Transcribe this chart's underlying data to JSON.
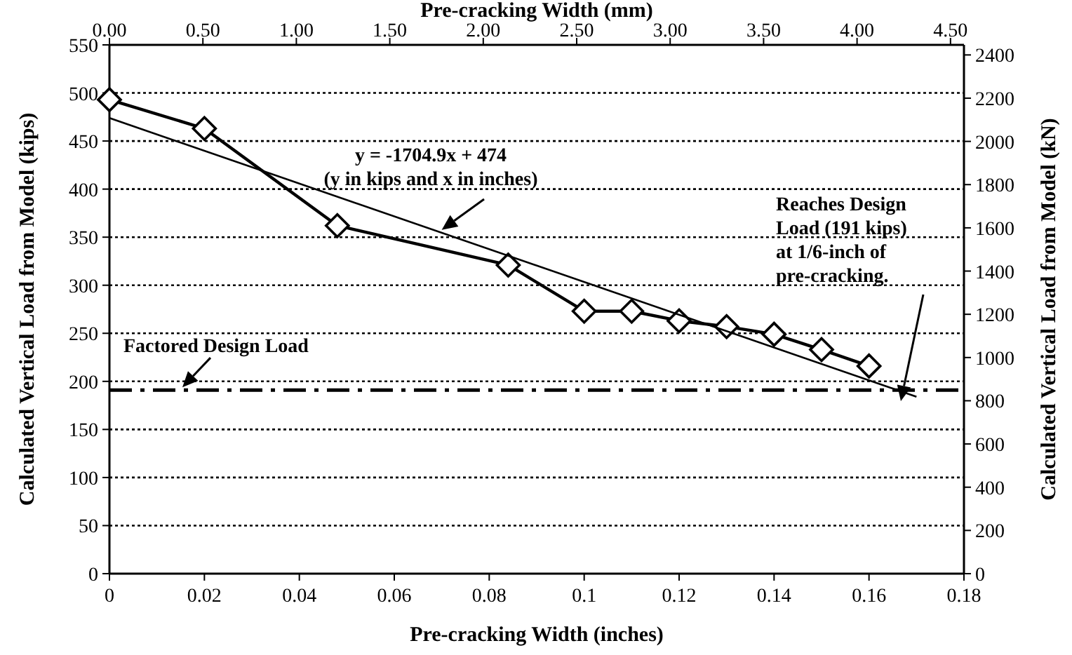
{
  "chart_data": {
    "type": "line",
    "xlabel": "Pre-cracking Width (inches)",
    "x2label": "Pre-cracking Width (mm)",
    "ylabel": "Calculated Vertical Load from Model (kips)",
    "y2label": "Calculated Vertical Load from Model (kN)",
    "xlim": [
      0,
      0.18
    ],
    "xticks": [
      0,
      0.02,
      0.04,
      0.06,
      0.08,
      0.1,
      0.12,
      0.14,
      0.16,
      0.18
    ],
    "x2lim": [
      0,
      4.572
    ],
    "x2ticks": [
      {
        "value": 0,
        "label": "0.00"
      },
      {
        "value": 0.5,
        "label": "0.50"
      },
      {
        "value": 1,
        "label": "1.00"
      },
      {
        "value": 1.5,
        "label": "1.50"
      },
      {
        "value": 2,
        "label": "2.00"
      },
      {
        "value": 2.5,
        "label": "2.50"
      },
      {
        "value": 3,
        "label": "3.00"
      },
      {
        "value": 3.5,
        "label": "3.50"
      },
      {
        "value": 4,
        "label": "4.00"
      },
      {
        "value": 4.5,
        "label": "4.50"
      }
    ],
    "ylim": [
      0,
      550
    ],
    "yticks": [
      0,
      50,
      100,
      150,
      200,
      250,
      300,
      350,
      400,
      450,
      500,
      550
    ],
    "y2lim": [
      0,
      2446.5
    ],
    "y2ticks": [
      0,
      200,
      400,
      600,
      800,
      1000,
      1200,
      1400,
      1600,
      1800,
      2000,
      2200,
      2400
    ],
    "grid": "y",
    "series": [
      {
        "color": "#000000",
        "marker": "diamond",
        "line_style": "solid",
        "x": [
          0,
          0.02,
          0.048,
          0.084,
          0.1,
          0.11,
          0.12,
          0.13,
          0.14,
          0.15,
          0.16
        ],
        "values": [
          493,
          463,
          362,
          321,
          273,
          273,
          263,
          257,
          249,
          233,
          216
        ]
      },
      {
        "color": "#000000",
        "marker": "none",
        "line_style": "solid",
        "x": [
          0,
          0.17
        ],
        "values": [
          474,
          184
        ]
      }
    ],
    "ref_lines": [
      {
        "axis": "y",
        "value": 191,
        "label": "Factored Design Load",
        "line_style": "dashed",
        "color": "#000000"
      }
    ],
    "annotations": [
      {
        "text": "y = -1704.9x + 474\n(y in kips and x in inches)",
        "x": 0.07,
        "y": 354.7
      },
      "Reaches Design\nLoad (191 kips)\nat 1/6-inch of\npre-cracking."
    ]
  }
}
